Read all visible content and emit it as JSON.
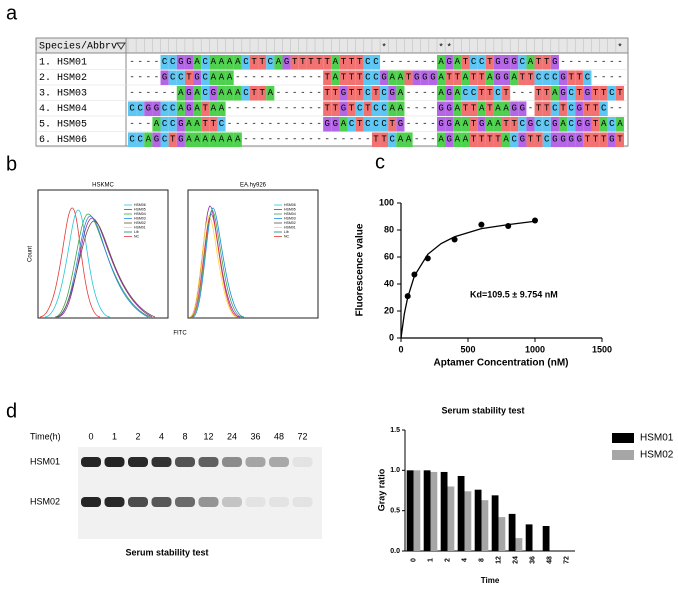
{
  "panel_labels": [
    "a",
    "b",
    "c",
    "d"
  ],
  "alignment": {
    "header": "Species/Abbrv",
    "conservation": "                               *      **                    *",
    "rows": [
      {
        "label": "1. HSM01",
        "sequence": "----CCGGACAAAACTTCAGTTTTTATTTCC-------AGATCCTGGGCATTG--------"
      },
      {
        "label": "2. HSM02",
        "sequence": "----GCCTGCAAA-----------TATTTCCGAATGGGATTATTAGGATTCCCGTTC----"
      },
      {
        "label": "3. HSM03",
        "sequence": "------AGACGAAACTTA------TTGTTCTCGA----AGACCTTCT---TTAGCTGTTCT"
      },
      {
        "label": "4. HSM04",
        "sequence": "CCGGCCAGATAA------------TTGTCTCCAA----GGATTATAAGG-TTCTCGTTC--"
      },
      {
        "label": "5. HSM05",
        "sequence": "---ACCGAATTC------------GGACTCCCTG----GGAATGAATTCGCCGACGGTACA"
      },
      {
        "label": "6. HSM06",
        "sequence": "CCAGCTGAAAAAAA----------------TTCAA---AGAATTTTACGTTCGGGGTTTGT"
      }
    ],
    "base_colors": {
      "A": "#4fd04f",
      "C": "#5ec6f2",
      "G": "#b466e6",
      "T": "#f27272"
    }
  },
  "flow": {
    "plots": [
      {
        "title": "HSKMC"
      },
      {
        "title": "EA.hy926"
      }
    ],
    "legend": [
      "HSM06",
      "HSM05",
      "HSM04",
      "HSM03",
      "HSM02",
      "HSM01",
      "Lib",
      "NC"
    ],
    "y_label": "Count",
    "x_label": "FITC"
  },
  "gel": {
    "time_label": "Time(h)",
    "lanes": [
      "0",
      "1",
      "2",
      "4",
      "8",
      "12",
      "24",
      "36",
      "48",
      "72"
    ],
    "rows": [
      "HSM01",
      "HSM02"
    ],
    "caption": "Serum stability test"
  },
  "chart_data": [
    {
      "type": "scatter",
      "x_label": "Aptamer Concentration (nM)",
      "y_label": "Fluorescence value",
      "annotation": "Kd=109.5 ± 9.754 nM",
      "x": [
        50,
        100,
        200,
        400,
        600,
        800,
        1000
      ],
      "values": [
        31,
        47,
        59,
        73,
        84,
        83,
        87
      ],
      "curve": {
        "x": [
          0,
          25,
          50,
          100,
          200,
          300,
          400,
          600,
          800,
          1000
        ],
        "y": [
          0,
          18,
          30,
          46,
          62,
          70,
          75,
          81,
          84,
          86.5
        ]
      },
      "color": "#000000",
      "xlim": [
        0,
        1500
      ],
      "xticks": [
        0,
        500,
        1000,
        1500
      ],
      "ylim": [
        0,
        100
      ],
      "yticks": [
        0,
        20,
        40,
        60,
        80,
        100
      ]
    },
    {
      "type": "bar",
      "title": "Serum stability test",
      "x_label": "Time",
      "y_label": "Gray ratio",
      "categories": [
        "0",
        "1",
        "2",
        "4",
        "8",
        "12",
        "24",
        "36",
        "48",
        "72"
      ],
      "series": [
        {
          "name": "HSM01",
          "color": "#000000",
          "values": [
            1.0,
            1.0,
            0.98,
            0.93,
            0.76,
            0.69,
            0.46,
            0.33,
            0.31,
            0
          ]
        },
        {
          "name": "HSM02",
          "color": "#a6a6a6",
          "values": [
            1.0,
            0.98,
            0.8,
            0.74,
            0.63,
            0.42,
            0.16,
            0,
            0,
            0
          ]
        }
      ],
      "ylim": [
        0,
        1.5
      ],
      "yticks": [
        {
          "value": 0,
          "label": "0.0"
        },
        0.5,
        {
          "value": 1,
          "label": "1.0"
        },
        1.5
      ],
      "legend": "right"
    }
  ]
}
